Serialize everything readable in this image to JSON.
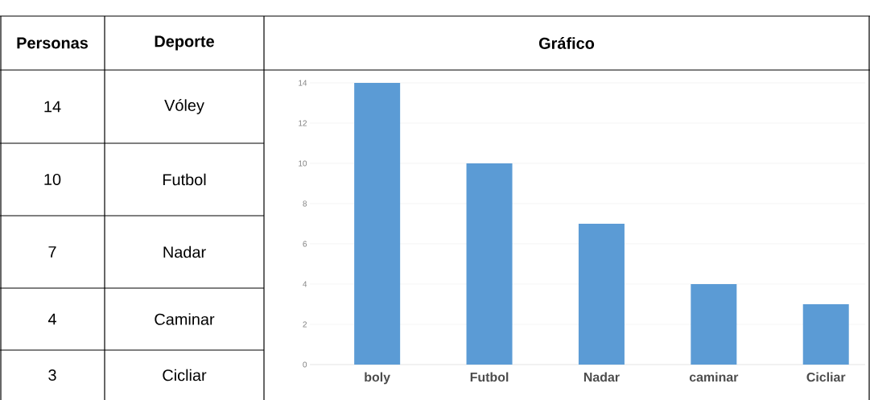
{
  "chart_data": {
    "type": "bar",
    "title": "Gráfico",
    "categories": [
      "boly",
      "Futbol",
      "Nadar",
      "caminar",
      "Cicliar"
    ],
    "values": [
      14,
      10,
      7,
      4,
      3
    ],
    "color": "#5b9bd5",
    "ylim": [
      0,
      14
    ],
    "yticks": [
      0,
      2,
      4,
      6,
      8,
      10,
      12,
      14
    ],
    "grid": "y",
    "annotations": [
      "Personas",
      "Deporte",
      "14",
      "Vóley",
      "10",
      "Futbol",
      "7",
      "Nadar",
      "4",
      "Caminar",
      "3",
      "Cicliar"
    ]
  }
}
